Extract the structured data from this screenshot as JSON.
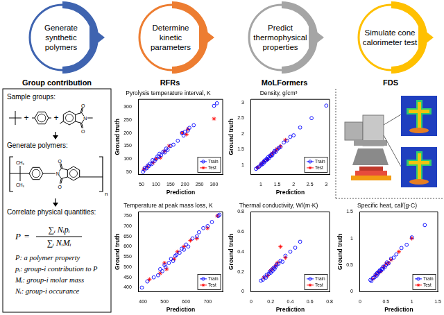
{
  "workflow": [
    "Generate synthetic polymers",
    "Determine kinetic parameters",
    "Predict thermophysical properties",
    "Simulate cone calorimeter test"
  ],
  "section_titles": [
    "Group contribution",
    "RFRs",
    "MoLFormers",
    "FDS"
  ],
  "group_contribution": {
    "steps": [
      "Sample groups:",
      "Generate polymers:",
      "Correlate physical quantities:"
    ],
    "joiner": "+",
    "imide_atoms": {
      "carbonyl": "O",
      "nitrogen": "N"
    },
    "methyl": "CH₃",
    "repeat": "n",
    "formula": {
      "lhs": "P",
      "equals": "=",
      "numerator": "∑ᵢ Nᵢpᵢ",
      "denominator": "∑ᵢ NᵢMᵢ"
    },
    "definitions": [
      "P: a polymer property",
      "pᵢ: group-i contribution to P",
      "Mᵢ: group-i molar mass",
      "Nᵢ: group-i occurance"
    ]
  },
  "chart_data": [
    {
      "type": "scatter",
      "title": "Pyrolysis temperature interval, K",
      "x_label": "Prediction",
      "y_label": "Ground truth",
      "xlim": [
        40,
        330
      ],
      "ylim": [
        40,
        330
      ],
      "xticks": [
        50,
        100,
        150,
        200,
        250,
        300
      ],
      "yticks": [
        50,
        100,
        150,
        200,
        250,
        300
      ],
      "grid": false,
      "legend": "lower right",
      "series": [
        {
          "name": "Train",
          "color": "#0000ff",
          "marker": "circle",
          "x": [
            55,
            60,
            62,
            68,
            72,
            75,
            80,
            85,
            88,
            95,
            100,
            105,
            110,
            112,
            118,
            125,
            130,
            135,
            140,
            150,
            160,
            175,
            190,
            195,
            200,
            210,
            215,
            230,
            300,
            310
          ],
          "values": [
            50,
            58,
            66,
            64,
            75,
            72,
            82,
            80,
            95,
            92,
            100,
            110,
            108,
            120,
            115,
            128,
            125,
            140,
            135,
            150,
            155,
            170,
            200,
            190,
            205,
            210,
            220,
            230,
            305,
            315
          ]
        },
        {
          "name": "Test",
          "color": "#ff0000",
          "marker": "star",
          "x": [
            58,
            70,
            90,
            100,
            115,
            130,
            145,
            190,
            205,
            210,
            300
          ],
          "values": [
            60,
            70,
            85,
            100,
            105,
            130,
            150,
            200,
            195,
            215,
            255
          ]
        }
      ]
    },
    {
      "type": "scatter",
      "title": "Temperature at peak mass loss, K",
      "x_label": "Prediction",
      "y_label": "Ground truth",
      "xlim": [
        380,
        770
      ],
      "ylim": [
        380,
        770
      ],
      "xticks": [
        400,
        500,
        600,
        700
      ],
      "yticks": [
        400,
        450,
        500,
        550,
        600,
        650,
        700,
        750
      ],
      "grid": false,
      "legend": "lower right",
      "series": [
        {
          "name": "Train",
          "color": "#0000ff",
          "marker": "circle",
          "x": [
            395,
            420,
            450,
            470,
            480,
            490,
            500,
            505,
            520,
            530,
            540,
            550,
            555,
            570,
            580,
            590,
            600,
            610,
            630,
            650,
            660,
            680,
            700,
            720,
            750,
            755
          ],
          "values": [
            400,
            430,
            450,
            460,
            490,
            480,
            510,
            500,
            520,
            540,
            530,
            555,
            560,
            570,
            590,
            585,
            610,
            600,
            640,
            650,
            670,
            690,
            700,
            720,
            750,
            755
          ]
        },
        {
          "name": "Test",
          "color": "#ff0000",
          "marker": "star",
          "x": [
            430,
            480,
            500,
            510,
            545,
            560,
            590,
            620,
            650,
            700,
            745
          ],
          "values": [
            440,
            470,
            520,
            490,
            540,
            575,
            600,
            630,
            640,
            690,
            750
          ]
        }
      ]
    },
    {
      "type": "scatter",
      "title": "Density, g/cm³",
      "x_label": "Prediction",
      "y_label": "Ground truth",
      "xlim": [
        0.7,
        3.1
      ],
      "ylim": [
        0.7,
        3.1
      ],
      "xticks": [
        1,
        1.5,
        2,
        2.5,
        3
      ],
      "yticks": [
        1,
        1.5,
        2,
        2.5,
        3
      ],
      "grid": false,
      "legend": "lower right",
      "series": [
        {
          "name": "Train",
          "color": "#0000ff",
          "marker": "circle",
          "x": [
            0.85,
            0.9,
            0.95,
            1.0,
            1.02,
            1.05,
            1.08,
            1.1,
            1.12,
            1.15,
            1.18,
            1.2,
            1.22,
            1.25,
            1.28,
            1.3,
            1.33,
            1.35,
            1.4,
            1.42,
            1.45,
            1.5,
            1.55,
            1.6,
            1.7,
            1.8,
            1.9,
            2.0,
            2.2,
            2.55,
            3.0
          ],
          "values": [
            0.88,
            0.92,
            0.95,
            1.0,
            1.05,
            1.03,
            1.1,
            1.08,
            1.15,
            1.14,
            1.2,
            1.18,
            1.25,
            1.22,
            1.3,
            1.28,
            1.35,
            1.32,
            1.4,
            1.45,
            1.42,
            1.5,
            1.55,
            1.58,
            1.72,
            1.78,
            1.9,
            1.95,
            2.2,
            2.5,
            2.9
          ]
        },
        {
          "name": "Test",
          "color": "#ff0000",
          "marker": "star",
          "x": [
            0.9,
            1.0,
            1.1,
            1.2,
            1.3,
            1.35,
            1.45,
            1.5,
            1.6,
            1.75
          ],
          "values": [
            0.92,
            1.02,
            1.12,
            1.18,
            1.3,
            1.38,
            1.45,
            1.52,
            1.6,
            1.8
          ]
        }
      ]
    },
    {
      "type": "scatter",
      "title": "Thermal conductivity, W/(m·K)",
      "x_label": "Prediction",
      "y_label": "Ground truth",
      "xlim": [
        0,
        0.8
      ],
      "ylim": [
        0,
        0.8
      ],
      "xticks": [
        0,
        0.2,
        0.4,
        0.6,
        0.8
      ],
      "yticks": [
        0,
        0.2,
        0.4,
        0.6,
        0.8
      ],
      "grid": false,
      "legend": "lower right",
      "series": [
        {
          "name": "Train",
          "color": "#0000ff",
          "marker": "circle",
          "x": [
            0.1,
            0.12,
            0.14,
            0.15,
            0.16,
            0.18,
            0.19,
            0.2,
            0.21,
            0.22,
            0.23,
            0.24,
            0.25,
            0.26,
            0.28,
            0.3,
            0.32,
            0.35,
            0.4,
            0.45,
            0.5
          ],
          "values": [
            0.11,
            0.12,
            0.15,
            0.14,
            0.17,
            0.18,
            0.2,
            0.19,
            0.22,
            0.21,
            0.24,
            0.23,
            0.25,
            0.27,
            0.28,
            0.31,
            0.3,
            0.36,
            0.4,
            0.44,
            0.5
          ]
        },
        {
          "name": "Test",
          "color": "#ff0000",
          "marker": "star",
          "x": [
            0.13,
            0.17,
            0.2,
            0.22,
            0.25,
            0.27,
            0.3,
            0.35
          ],
          "values": [
            0.14,
            0.16,
            0.21,
            0.23,
            0.26,
            0.29,
            0.45,
            0.34
          ]
        }
      ]
    },
    {
      "type": "scatter",
      "title": "Specific heat, cal/(g·C)",
      "x_label": "Prediction",
      "y_label": "Ground truth",
      "xlim": [
        0,
        1.5
      ],
      "ylim": [
        0,
        1.5
      ],
      "xticks": [
        0,
        0.5,
        1,
        1.5
      ],
      "yticks": [
        0,
        0.5,
        1,
        1.5
      ],
      "grid": false,
      "legend": "lower right",
      "series": [
        {
          "name": "Train",
          "color": "#0000ff",
          "marker": "circle",
          "x": [
            0.2,
            0.22,
            0.25,
            0.28,
            0.3,
            0.32,
            0.33,
            0.35,
            0.37,
            0.38,
            0.4,
            0.42,
            0.44,
            0.45,
            0.48,
            0.5,
            0.52,
            0.55,
            0.6,
            0.65,
            0.7,
            0.8,
            0.9,
            1.0,
            1.25
          ],
          "values": [
            0.22,
            0.2,
            0.26,
            0.27,
            0.32,
            0.3,
            0.35,
            0.34,
            0.38,
            0.4,
            0.39,
            0.43,
            0.42,
            0.47,
            0.46,
            0.5,
            0.55,
            0.53,
            0.62,
            0.64,
            0.7,
            0.82,
            0.88,
            1.02,
            1.25
          ]
        },
        {
          "name": "Test",
          "color": "#ff0000",
          "marker": "star",
          "x": [
            0.25,
            0.3,
            0.35,
            0.4,
            0.45,
            0.5,
            0.55,
            0.6,
            0.75,
            1.0
          ],
          "values": [
            0.24,
            0.31,
            0.36,
            0.38,
            0.46,
            0.52,
            0.54,
            0.6,
            0.75,
            1.0
          ]
        }
      ]
    }
  ]
}
